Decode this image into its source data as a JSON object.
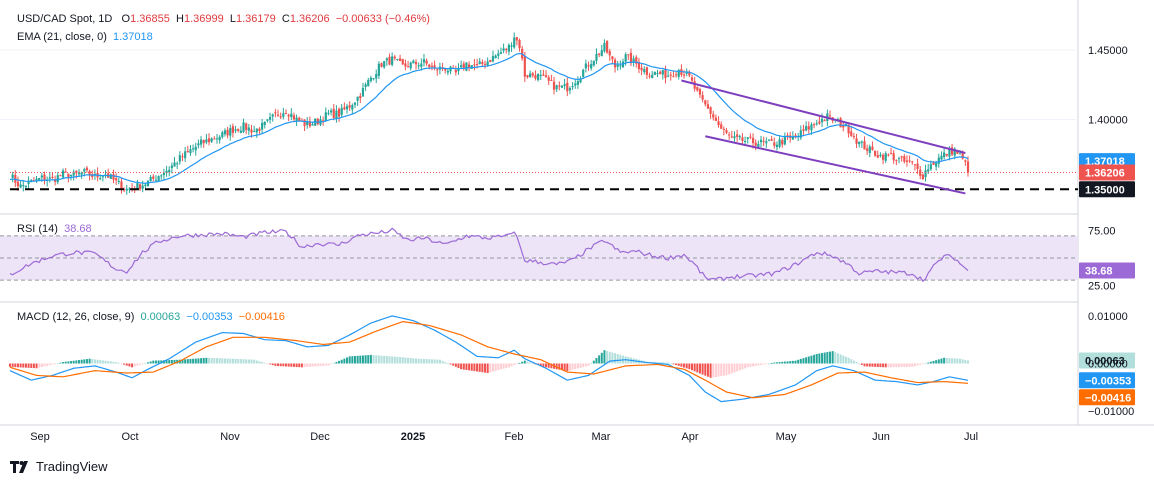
{
  "header": {
    "symbol": "USD/CAD Spot, 1D",
    "open_label": "O",
    "open": "1.36855",
    "high_label": "H",
    "high": "1.36999",
    "low_label": "L",
    "low": "1.36179",
    "close_label": "C",
    "close": "1.36206",
    "change": "−0.00633 (−0.46%)"
  },
  "ema_legend": {
    "label": "EMA (21, close, 0)",
    "value": "1.37018"
  },
  "rsi_legend": {
    "label": "RSI (14)",
    "value": "38.68"
  },
  "macd_legend": {
    "label": "MACD (12, 26, close, 9)",
    "hist": "0.00063",
    "macd": "−0.00353",
    "signal": "−0.00416"
  },
  "footer": {
    "brand": "TradingView"
  },
  "colors": {
    "up": "#26a69a",
    "down": "#ef5350",
    "ema": "#2196f3",
    "channel": "#7e3fbf",
    "rsi": "#9c6ad6",
    "rsi_band": "#ede4f7",
    "macd": "#2196f3",
    "signal": "#ff6d00",
    "hist_up_strong": "#26a69a",
    "hist_up_weak": "#b2dfdb",
    "hist_down_strong": "#ef5350",
    "hist_down_weak": "#ffcdd2",
    "support": "#000000"
  },
  "chart_data": [
    {
      "type": "candlestick",
      "title": "USD/CAD Spot, 1D",
      "y_ticks": [
        "1.45000",
        "1.40000"
      ],
      "ylim": [
        1.338,
        1.48
      ],
      "price_badges": [
        {
          "value": "1.37018",
          "color": "#2196f3"
        },
        {
          "value": "1.36206",
          "color": "#ef5350"
        },
        {
          "value": "1.35000",
          "color": "#131722"
        }
      ],
      "support_level": 1.35,
      "last_close": 1.36206,
      "x_labels": [
        "Sep",
        "Oct",
        "Nov",
        "Dec",
        "2025",
        "Feb",
        "Mar",
        "Apr",
        "May",
        "Jun",
        "Jul"
      ],
      "close_path": [
        [
          0,
          1.36
        ],
        [
          4,
          1.352
        ],
        [
          8,
          1.355
        ],
        [
          12,
          1.358
        ],
        [
          16,
          1.357
        ],
        [
          20,
          1.361
        ],
        [
          24,
          1.36
        ],
        [
          28,
          1.362
        ],
        [
          32,
          1.359
        ],
        [
          36,
          1.361
        ],
        [
          40,
          1.355
        ],
        [
          44,
          1.35
        ],
        [
          48,
          1.352
        ],
        [
          52,
          1.355
        ],
        [
          56,
          1.36
        ],
        [
          60,
          1.365
        ],
        [
          64,
          1.372
        ],
        [
          68,
          1.378
        ],
        [
          72,
          1.383
        ],
        [
          76,
          1.386
        ],
        [
          80,
          1.389
        ],
        [
          84,
          1.393
        ],
        [
          88,
          1.395
        ],
        [
          92,
          1.392
        ],
        [
          96,
          1.396
        ],
        [
          100,
          1.403
        ],
        [
          104,
          1.407
        ],
        [
          108,
          1.4
        ],
        [
          112,
          1.396
        ],
        [
          116,
          1.399
        ],
        [
          120,
          1.404
        ],
        [
          124,
          1.404
        ],
        [
          128,
          1.41
        ],
        [
          132,
          1.418
        ],
        [
          136,
          1.43
        ],
        [
          140,
          1.44
        ],
        [
          144,
          1.443
        ],
        [
          148,
          1.438
        ],
        [
          152,
          1.44
        ],
        [
          156,
          1.441
        ],
        [
          160,
          1.436
        ],
        [
          164,
          1.437
        ],
        [
          168,
          1.433
        ],
        [
          172,
          1.44
        ],
        [
          176,
          1.438
        ],
        [
          180,
          1.442
        ],
        [
          184,
          1.447
        ],
        [
          188,
          1.452
        ],
        [
          190,
          1.46
        ],
        [
          192,
          1.453
        ],
        [
          194,
          1.432
        ],
        [
          198,
          1.432
        ],
        [
          202,
          1.428
        ],
        [
          206,
          1.423
        ],
        [
          210,
          1.423
        ],
        [
          214,
          1.43
        ],
        [
          218,
          1.44
        ],
        [
          222,
          1.448
        ],
        [
          224,
          1.452
        ],
        [
          228,
          1.438
        ],
        [
          232,
          1.445
        ],
        [
          236,
          1.44
        ],
        [
          240,
          1.434
        ],
        [
          244,
          1.433
        ],
        [
          248,
          1.432
        ],
        [
          252,
          1.436
        ],
        [
          256,
          1.43
        ],
        [
          260,
          1.415
        ],
        [
          264,
          1.405
        ],
        [
          268,
          1.393
        ],
        [
          272,
          1.386
        ],
        [
          276,
          1.385
        ],
        [
          280,
          1.384
        ],
        [
          284,
          1.383
        ],
        [
          288,
          1.383
        ],
        [
          292,
          1.385
        ],
        [
          296,
          1.387
        ],
        [
          300,
          1.393
        ],
        [
          304,
          1.398
        ],
        [
          308,
          1.402
        ],
        [
          312,
          1.398
        ],
        [
          316,
          1.393
        ],
        [
          320,
          1.383
        ],
        [
          324,
          1.378
        ],
        [
          328,
          1.374
        ],
        [
          332,
          1.374
        ],
        [
          336,
          1.37
        ],
        [
          340,
          1.368
        ],
        [
          344,
          1.36
        ],
        [
          346,
          1.366
        ],
        [
          350,
          1.372
        ],
        [
          354,
          1.377
        ],
        [
          356,
          1.378
        ],
        [
          358,
          1.374
        ],
        [
          360,
          1.368
        ],
        [
          361,
          1.362
        ]
      ]
    },
    {
      "type": "line",
      "title": "RSI (14)",
      "y_ticks": [
        "75.00",
        "25.00"
      ],
      "ylim": [
        12,
        88
      ],
      "bands": [
        70,
        50,
        30
      ],
      "last_value": 38.68,
      "values_path": [
        [
          0,
          35
        ],
        [
          8,
          45
        ],
        [
          16,
          52
        ],
        [
          24,
          55
        ],
        [
          32,
          54
        ],
        [
          40,
          40
        ],
        [
          44,
          38
        ],
        [
          50,
          55
        ],
        [
          56,
          65
        ],
        [
          64,
          70
        ],
        [
          72,
          71
        ],
        [
          80,
          72
        ],
        [
          88,
          69
        ],
        [
          96,
          73
        ],
        [
          104,
          74
        ],
        [
          110,
          60
        ],
        [
          116,
          63
        ],
        [
          124,
          62
        ],
        [
          132,
          71
        ],
        [
          140,
          73
        ],
        [
          144,
          75
        ],
        [
          150,
          66
        ],
        [
          156,
          68
        ],
        [
          164,
          62
        ],
        [
          172,
          70
        ],
        [
          180,
          68
        ],
        [
          188,
          70
        ],
        [
          190,
          75
        ],
        [
          194,
          48
        ],
        [
          200,
          46
        ],
        [
          206,
          44
        ],
        [
          212,
          48
        ],
        [
          218,
          58
        ],
        [
          224,
          66
        ],
        [
          230,
          55
        ],
        [
          236,
          56
        ],
        [
          242,
          52
        ],
        [
          248,
          50
        ],
        [
          254,
          53
        ],
        [
          258,
          44
        ],
        [
          262,
          32
        ],
        [
          266,
          30
        ],
        [
          272,
          33
        ],
        [
          280,
          34
        ],
        [
          288,
          36
        ],
        [
          296,
          44
        ],
        [
          304,
          55
        ],
        [
          310,
          52
        ],
        [
          316,
          44
        ],
        [
          320,
          36
        ],
        [
          326,
          38
        ],
        [
          334,
          37
        ],
        [
          340,
          36
        ],
        [
          344,
          30
        ],
        [
          348,
          42
        ],
        [
          352,
          52
        ],
        [
          356,
          50
        ],
        [
          358,
          45
        ],
        [
          361,
          38.68
        ]
      ]
    },
    {
      "type": "line",
      "title": "MACD (12, 26, close, 9)",
      "y_ticks": [
        "0.01000",
        "0.00000",
        "−0.01000"
      ],
      "ylim": [
        -0.0125,
        0.0125
      ],
      "series": [
        {
          "name": "MACD",
          "last": -0.00353,
          "path": [
            [
              0,
              -0.0015
            ],
            [
              8,
              -0.0035
            ],
            [
              16,
              -0.0025
            ],
            [
              24,
              -0.001
            ],
            [
              32,
              -0.0005
            ],
            [
              40,
              -0.0018
            ],
            [
              46,
              -0.003
            ],
            [
              52,
              -0.0012
            ],
            [
              60,
              0.001
            ],
            [
              70,
              0.0045
            ],
            [
              80,
              0.0065
            ],
            [
              88,
              0.0063
            ],
            [
              96,
              0.005
            ],
            [
              104,
              0.0048
            ],
            [
              112,
              0.0035
            ],
            [
              120,
              0.0038
            ],
            [
              128,
              0.006
            ],
            [
              136,
              0.0085
            ],
            [
              144,
              0.01
            ],
            [
              152,
              0.009
            ],
            [
              160,
              0.007
            ],
            [
              168,
              0.0045
            ],
            [
              176,
              0.0015
            ],
            [
              184,
              0.0012
            ],
            [
              190,
              0.0028
            ],
            [
              194,
              0.001
            ],
            [
              202,
              -0.001
            ],
            [
              210,
              -0.0035
            ],
            [
              218,
              -0.0025
            ],
            [
              226,
              0.0005
            ],
            [
              232,
              0.0008
            ],
            [
              240,
              0.0002
            ],
            [
              248,
              -0.0002
            ],
            [
              256,
              -0.0025
            ],
            [
              262,
              -0.006
            ],
            [
              268,
              -0.008
            ],
            [
              276,
              -0.0075
            ],
            [
              286,
              -0.0065
            ],
            [
              296,
              -0.0045
            ],
            [
              304,
              -0.0015
            ],
            [
              310,
              -0.0005
            ],
            [
              318,
              -0.0015
            ],
            [
              326,
              -0.0035
            ],
            [
              334,
              -0.0038
            ],
            [
              342,
              -0.0045
            ],
            [
              348,
              -0.0038
            ],
            [
              354,
              -0.0028
            ],
            [
              361,
              -0.00353
            ]
          ]
        },
        {
          "name": "Signal",
          "last": -0.00416,
          "path": [
            [
              0,
              -0.0008
            ],
            [
              10,
              -0.0025
            ],
            [
              20,
              -0.0028
            ],
            [
              32,
              -0.0015
            ],
            [
              44,
              -0.002
            ],
            [
              54,
              -0.0018
            ],
            [
              64,
              0.0005
            ],
            [
              74,
              0.0035
            ],
            [
              84,
              0.0055
            ],
            [
              96,
              0.0055
            ],
            [
              108,
              0.0048
            ],
            [
              118,
              0.004
            ],
            [
              128,
              0.0045
            ],
            [
              138,
              0.0068
            ],
            [
              148,
              0.0088
            ],
            [
              158,
              0.008
            ],
            [
              170,
              0.006
            ],
            [
              180,
              0.0035
            ],
            [
              190,
              0.002
            ],
            [
              200,
              0.0008
            ],
            [
              210,
              -0.0018
            ],
            [
              220,
              -0.0022
            ],
            [
              232,
              -0.0005
            ],
            [
              244,
              -0.0002
            ],
            [
              254,
              -0.0012
            ],
            [
              262,
              -0.0035
            ],
            [
              270,
              -0.006
            ],
            [
              280,
              -0.0072
            ],
            [
              292,
              -0.0065
            ],
            [
              302,
              -0.0045
            ],
            [
              312,
              -0.002
            ],
            [
              322,
              -0.0018
            ],
            [
              332,
              -0.003
            ],
            [
              342,
              -0.004
            ],
            [
              352,
              -0.0038
            ],
            [
              361,
              -0.00416
            ]
          ]
        }
      ],
      "histogram_last": 0.00063,
      "histogram_path": [
        [
          0,
          -0.0007
        ],
        [
          10,
          -0.001
        ],
        [
          20,
          0.0003
        ],
        [
          30,
          0.001
        ],
        [
          40,
          0.0003
        ],
        [
          46,
          -0.0008
        ],
        [
          54,
          0.0006
        ],
        [
          64,
          0.0008
        ],
        [
          74,
          0.0012
        ],
        [
          84,
          0.001
        ],
        [
          92,
          0.0008
        ],
        [
          100,
          -0.0005
        ],
        [
          110,
          -0.0008
        ],
        [
          120,
          -0.0004
        ],
        [
          128,
          0.0015
        ],
        [
          136,
          0.0018
        ],
        [
          146,
          0.0014
        ],
        [
          154,
          0.001
        ],
        [
          162,
          0.0008
        ],
        [
          170,
          -0.0012
        ],
        [
          180,
          -0.002
        ],
        [
          188,
          -0.0008
        ],
        [
          194,
          0.0006
        ],
        [
          202,
          -0.0008
        ],
        [
          210,
          -0.0016
        ],
        [
          218,
          -0.0005
        ],
        [
          224,
          0.0028
        ],
        [
          232,
          0.0015
        ],
        [
          240,
          0.0004
        ],
        [
          248,
          0.0002
        ],
        [
          256,
          -0.0012
        ],
        [
          264,
          -0.003
        ],
        [
          270,
          -0.0025
        ],
        [
          278,
          -0.0008
        ],
        [
          288,
          0.0002
        ],
        [
          296,
          0.0006
        ],
        [
          304,
          0.002
        ],
        [
          310,
          0.0026
        ],
        [
          316,
          0.0012
        ],
        [
          322,
          -0.0006
        ],
        [
          330,
          -0.0008
        ],
        [
          340,
          -0.0007
        ],
        [
          346,
          0.0002
        ],
        [
          352,
          0.0012
        ],
        [
          358,
          0.001
        ],
        [
          361,
          0.00063
        ]
      ]
    }
  ]
}
